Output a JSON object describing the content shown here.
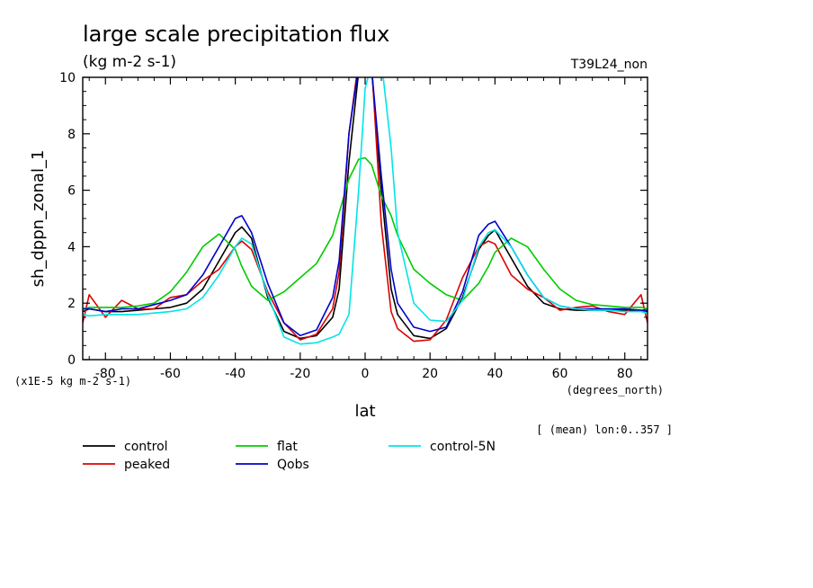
{
  "chart_data": {
    "type": "line",
    "title": "large scale precipitation flux",
    "units": "(kg m-2 s-1)",
    "run_label": "T39L24_non",
    "ylabel": "sh_dppn_zonal_1",
    "xlabel": "lat",
    "x_units": "(degrees_north)",
    "y_scale_note": "(x1E-5 kg m-2 s-1)",
    "mean_note": "[ (mean) lon:0..357 ]",
    "xlim": [
      -87,
      87
    ],
    "ylim": [
      0,
      10
    ],
    "x_ticks": [
      -80,
      -60,
      -40,
      -20,
      0,
      20,
      40,
      60,
      80
    ],
    "y_ticks": [
      0,
      2,
      4,
      6,
      8,
      10
    ],
    "x_tick_labels": [
      "-80",
      "-60",
      "-40",
      "-20",
      "0",
      "20",
      "40",
      "60",
      "80"
    ],
    "y_tick_labels": [
      "0",
      "2",
      "4",
      "6",
      "8",
      "10"
    ],
    "grid": false,
    "legend_position": "bottom",
    "x": [
      -87,
      -85,
      -80,
      -75,
      -70,
      -65,
      -60,
      -55,
      -50,
      -45,
      -40,
      -38,
      -35,
      -30,
      -25,
      -20,
      -15,
      -10,
      -8,
      -5,
      -2,
      0,
      2,
      5,
      8,
      10,
      15,
      20,
      25,
      30,
      35,
      38,
      40,
      45,
      50,
      55,
      60,
      65,
      70,
      75,
      80,
      85,
      87
    ],
    "series": [
      {
        "name": "control",
        "color": "#000000",
        "values": [
          1.7,
          1.8,
          1.7,
          1.7,
          1.75,
          1.8,
          1.85,
          2.0,
          2.5,
          3.5,
          4.5,
          4.7,
          4.3,
          2.2,
          1.0,
          0.75,
          0.85,
          1.5,
          2.5,
          7.0,
          10.2,
          10.5,
          10.3,
          6.0,
          2.5,
          1.6,
          0.85,
          0.75,
          1.1,
          2.2,
          3.9,
          4.4,
          4.6,
          3.6,
          2.6,
          2.0,
          1.8,
          1.75,
          1.75,
          1.75,
          1.75,
          1.75,
          1.7
        ]
      },
      {
        "name": "peaked",
        "color": "#dd0000",
        "values": [
          1.3,
          2.3,
          1.5,
          2.1,
          1.8,
          1.8,
          2.2,
          2.3,
          2.8,
          3.2,
          4.0,
          4.2,
          3.9,
          2.4,
          1.3,
          0.7,
          0.9,
          1.8,
          3.1,
          8.0,
          10.6,
          10.8,
          10.5,
          4.8,
          1.7,
          1.1,
          0.65,
          0.7,
          1.4,
          2.9,
          4.0,
          4.2,
          4.1,
          3.0,
          2.5,
          2.2,
          1.75,
          1.85,
          1.9,
          1.7,
          1.6,
          2.3,
          1.3
        ]
      },
      {
        "name": "flat",
        "color": "#00cc00",
        "values": [
          1.8,
          1.85,
          1.85,
          1.85,
          1.9,
          2.0,
          2.4,
          3.1,
          4.0,
          4.45,
          3.9,
          3.3,
          2.6,
          2.1,
          2.4,
          2.9,
          3.4,
          4.4,
          5.2,
          6.4,
          7.1,
          7.15,
          6.9,
          5.8,
          5.1,
          4.4,
          3.2,
          2.7,
          2.3,
          2.1,
          2.7,
          3.3,
          3.8,
          4.3,
          4.0,
          3.2,
          2.5,
          2.1,
          1.95,
          1.9,
          1.85,
          1.85,
          1.8
        ]
      },
      {
        "name": "Qobs",
        "color": "#0000cc",
        "values": [
          1.8,
          1.8,
          1.7,
          1.8,
          1.8,
          1.95,
          2.1,
          2.3,
          3.0,
          4.0,
          5.0,
          5.1,
          4.5,
          2.7,
          1.3,
          0.85,
          1.05,
          2.2,
          3.5,
          8.0,
          10.4,
          10.6,
          10.3,
          6.5,
          3.2,
          2.0,
          1.15,
          1.0,
          1.15,
          2.4,
          4.4,
          4.8,
          4.9,
          4.0,
          3.0,
          2.2,
          1.9,
          1.8,
          1.8,
          1.8,
          1.8,
          1.75,
          1.75
        ]
      },
      {
        "name": "control-5N",
        "color": "#00e5e5",
        "values": [
          1.6,
          1.55,
          1.6,
          1.6,
          1.6,
          1.65,
          1.7,
          1.8,
          2.2,
          3.0,
          4.0,
          4.3,
          4.1,
          2.3,
          0.8,
          0.55,
          0.6,
          0.8,
          0.9,
          1.6,
          6.0,
          9.6,
          10.5,
          10.6,
          7.5,
          4.5,
          2.0,
          1.4,
          1.35,
          2.1,
          4.0,
          4.5,
          4.6,
          4.0,
          3.0,
          2.2,
          1.9,
          1.8,
          1.75,
          1.75,
          1.7,
          1.7,
          1.65
        ]
      }
    ]
  }
}
